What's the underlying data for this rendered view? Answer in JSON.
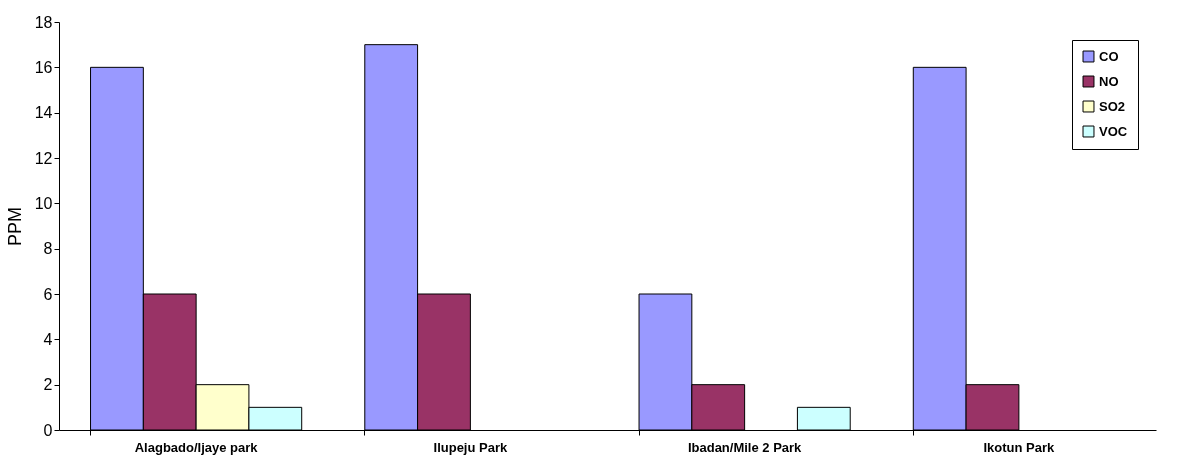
{
  "chart_data": {
    "type": "bar",
    "ylabel": "PPM",
    "categories": [
      "Alagbado/Ijaye park",
      "Ilupeju Park",
      "Ibadan/Mile 2 Park",
      "Ikotun Park"
    ],
    "series": [
      {
        "name": "CO",
        "color": "#9999ff",
        "values": [
          16,
          17,
          6,
          16
        ]
      },
      {
        "name": "NO",
        "color": "#993366",
        "values": [
          6,
          6,
          2,
          2
        ]
      },
      {
        "name": "SO2",
        "color": "#ffffcc",
        "values": [
          2,
          null,
          null,
          null
        ]
      },
      {
        "name": "VOC",
        "color": "#ccffff",
        "values": [
          1,
          null,
          1,
          null
        ]
      }
    ],
    "ylim": [
      0,
      18
    ],
    "yticks": [
      0,
      2,
      4,
      6,
      8,
      10,
      12,
      14,
      16,
      18
    ],
    "grid": false,
    "legend": "top right"
  }
}
